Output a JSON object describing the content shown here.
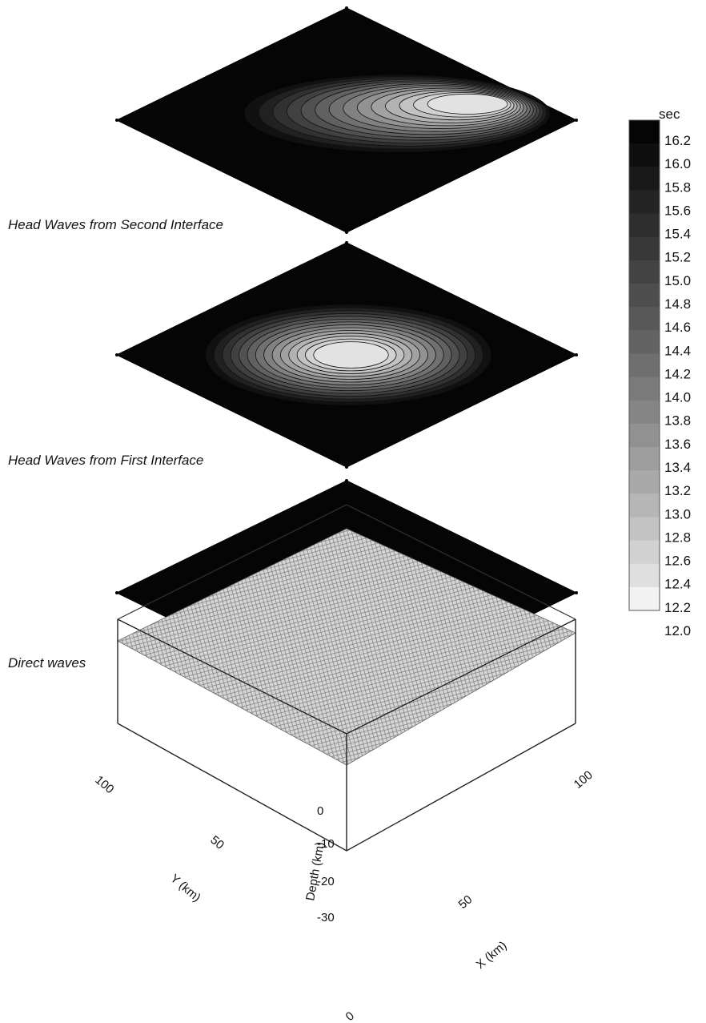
{
  "chart_data": [
    {
      "type": "heatmap",
      "title": "Head Waves from Second Interface",
      "units": "sec",
      "shape": "elongated-plateau",
      "min_value": 12.0,
      "max_value": 16.2,
      "contour_interval": 0.2
    },
    {
      "type": "heatmap",
      "title": "Head Waves from First Interface",
      "units": "sec",
      "shape": "broad-plateau",
      "min_value": 12.0,
      "max_value": 16.2,
      "contour_interval": 0.2
    },
    {
      "type": "heatmap",
      "title": "Direct waves",
      "units": "sec",
      "shape": "concentric-bullseye",
      "min_value": 12.0,
      "max_value": 16.2,
      "contour_interval": 0.2
    },
    {
      "type": "surface",
      "title": "",
      "xlabel": "X (km)",
      "ylabel": "Y (km)",
      "zlabel": "Depth (km)",
      "x_ticks": [
        "0",
        "50",
        "100"
      ],
      "y_ticks": [
        "50",
        "100"
      ],
      "z_ticks": [
        "0",
        "-10",
        "-20",
        "-30"
      ],
      "xlim": [
        0,
        100
      ],
      "ylim": [
        0,
        100
      ],
      "zlim": [
        -30,
        0
      ]
    }
  ],
  "colorbar": {
    "unit_label": "sec",
    "ticks": [
      "16.2",
      "16.0",
      "15.8",
      "15.6",
      "15.4",
      "15.2",
      "15.0",
      "14.8",
      "14.6",
      "14.4",
      "14.2",
      "14.0",
      "13.8",
      "13.6",
      "13.4",
      "13.2",
      "13.0",
      "12.8",
      "12.6",
      "12.4",
      "12.2",
      "12.0"
    ],
    "low_color": "#f2f2f2",
    "high_color": "#050505"
  }
}
